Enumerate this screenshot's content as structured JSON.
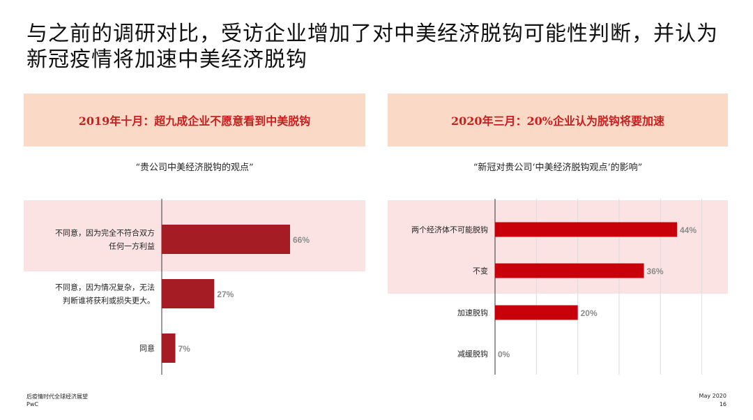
{
  "title": "与之前的调研对比，受访企业增加了对中美经济脱钩可能性判断，并认为新冠疫情将加速中美经济脱钩",
  "panels": {
    "left": {
      "header": "2019年十月：超九成企业不愿意看到中美脱钩",
      "subtitle": "“贵公司中美经济脱钩的观点”"
    },
    "right": {
      "header": "2020年三月：20%企业认为脱钩将要加速",
      "subtitle": "“新冠对贵公司‘中美经济脱钩观点’的影响”"
    }
  },
  "colors": {
    "left_bar": "#a51c24",
    "right_bar": "#c8000a",
    "highlight": "#fbe3e3",
    "band": "#fbd9c7",
    "header_text": "#c81e1e"
  },
  "chart_data": [
    {
      "type": "bar",
      "orientation": "horizontal",
      "categories": [
        [
          "不同意，因为完全不符合双方",
          "任何一方利益"
        ],
        [
          "不同意，因为情况复杂，无法",
          "判断谁将获利或损失更大。"
        ],
        [
          "同意"
        ]
      ],
      "values": [
        66,
        27,
        7
      ],
      "value_labels": [
        "66%",
        "27%",
        "7%"
      ],
      "xlim": [
        0,
        100
      ],
      "grid": false,
      "highlighted_index": 0
    },
    {
      "type": "bar",
      "orientation": "horizontal",
      "categories": [
        [
          "两个经济体不可能脱钩"
        ],
        [
          "不变"
        ],
        [
          "加速脱钩"
        ],
        [
          "减缓脱钩"
        ]
      ],
      "values": [
        44,
        36,
        20,
        0
      ],
      "value_labels": [
        "44%",
        "36%",
        "20%",
        "0%"
      ],
      "xlim": [
        0,
        50
      ],
      "grid": true,
      "highlighted_indices": [
        0,
        1
      ]
    }
  ],
  "footer": {
    "left_line1": "后疫情时代全球经济展望",
    "left_line2": "PwC",
    "right_line1": "May 2020",
    "right_line2": "16"
  }
}
